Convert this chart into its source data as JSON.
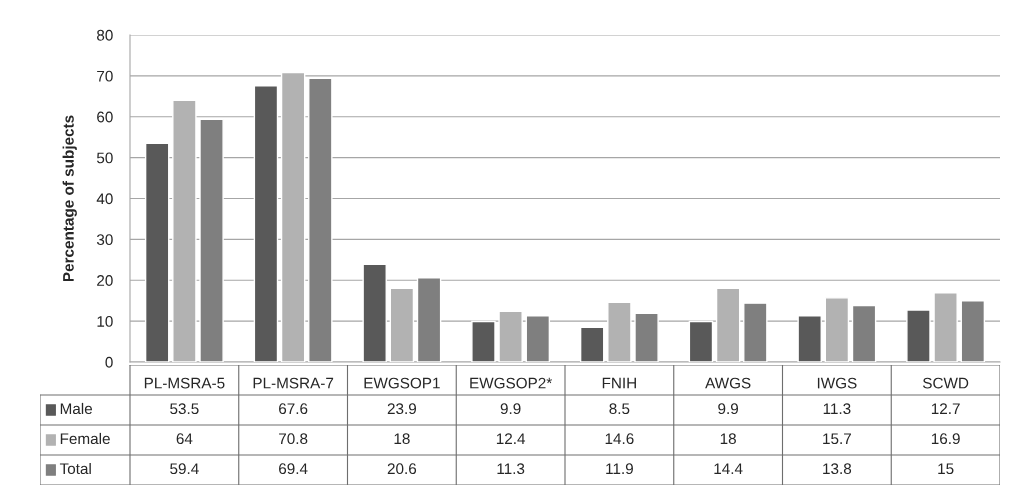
{
  "chart_data": {
    "type": "bar",
    "ylabel": "Percentage of subjects",
    "categories": [
      "PL-MSRA-5",
      "PL-MSRA-7",
      "EWGSOP1",
      "EWGSOP2*",
      "FNIH",
      "AWGS",
      "IWGS",
      "SCWD"
    ],
    "series": [
      {
        "name": "Male",
        "color": "#595959",
        "values": [
          53.5,
          67.6,
          23.9,
          9.9,
          8.5,
          9.9,
          11.3,
          12.7
        ]
      },
      {
        "name": "Female",
        "color": "#b2b2b2",
        "values": [
          64,
          70.8,
          18,
          12.4,
          14.6,
          18,
          15.7,
          16.9
        ]
      },
      {
        "name": "Total",
        "color": "#7f7f7f",
        "values": [
          59.4,
          69.4,
          20.6,
          11.3,
          11.9,
          14.4,
          13.8,
          15
        ]
      }
    ],
    "ylim": [
      0,
      80
    ],
    "yticks": [
      0,
      10,
      20,
      30,
      40,
      50,
      60,
      70,
      80
    ],
    "grid": "y",
    "legend": "bottom",
    "data_labels": true
  }
}
